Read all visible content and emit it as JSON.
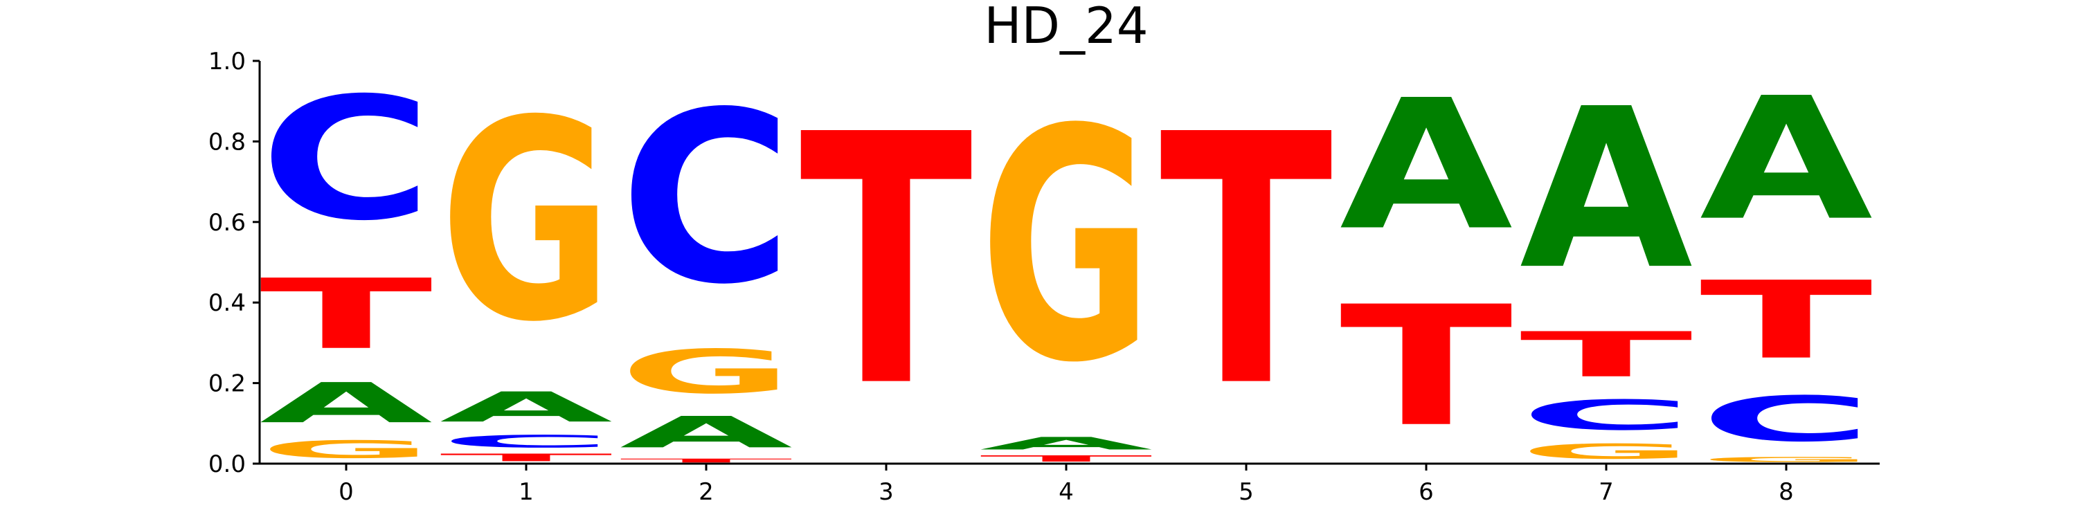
{
  "chart_data": {
    "type": "sequence_logo",
    "title": "HD_24",
    "xlabel": "",
    "ylabel": "",
    "ylim": [
      0,
      1.0
    ],
    "yticks": [
      "0.0",
      "0.2",
      "0.4",
      "0.6",
      "0.8",
      "1.0"
    ],
    "xticks": [
      "0",
      "1",
      "2",
      "3",
      "4",
      "5",
      "6",
      "7",
      "8"
    ],
    "grid": false,
    "colors": {
      "A": "#008000",
      "C": "#0000ff",
      "G": "#ffa500",
      "T": "#ff0000"
    },
    "positions": [
      {
        "x": 0,
        "letters": [
          {
            "base": "G",
            "height": 0.07
          },
          {
            "base": "A",
            "height": 0.16
          },
          {
            "base": "T",
            "height": 0.28
          },
          {
            "base": "C",
            "height": 0.49
          }
        ]
      },
      {
        "x": 1,
        "letters": [
          {
            "base": "T",
            "height": 0.03
          },
          {
            "base": "C",
            "height": 0.05
          },
          {
            "base": "A",
            "height": 0.12
          },
          {
            "base": "G",
            "height": 0.8
          }
        ]
      },
      {
        "x": 2,
        "letters": [
          {
            "base": "T",
            "height": 0.015
          },
          {
            "base": "A",
            "height": 0.125
          },
          {
            "base": "G",
            "height": 0.175
          },
          {
            "base": "C",
            "height": 0.685
          }
        ]
      },
      {
        "x": 3,
        "letters": [
          {
            "base": "T",
            "height": 1.0
          }
        ]
      },
      {
        "x": 4,
        "letters": [
          {
            "base": "T",
            "height": 0.025
          },
          {
            "base": "A",
            "height": 0.05
          },
          {
            "base": "G",
            "height": 0.925
          }
        ]
      },
      {
        "x": 5,
        "letters": [
          {
            "base": "T",
            "height": 1.0
          }
        ]
      },
      {
        "x": 6,
        "letters": [
          {
            "base": "T",
            "height": 0.48
          },
          {
            "base": "A",
            "height": 0.52
          }
        ]
      },
      {
        "x": 7,
        "letters": [
          {
            "base": "G",
            "height": 0.06
          },
          {
            "base": "C",
            "height": 0.12
          },
          {
            "base": "T",
            "height": 0.18
          },
          {
            "base": "A",
            "height": 0.64
          }
        ]
      },
      {
        "x": 8,
        "letters": [
          {
            "base": "G",
            "height": 0.02
          },
          {
            "base": "C",
            "height": 0.18
          },
          {
            "base": "T",
            "height": 0.31
          },
          {
            "base": "A",
            "height": 0.49
          }
        ]
      }
    ]
  }
}
